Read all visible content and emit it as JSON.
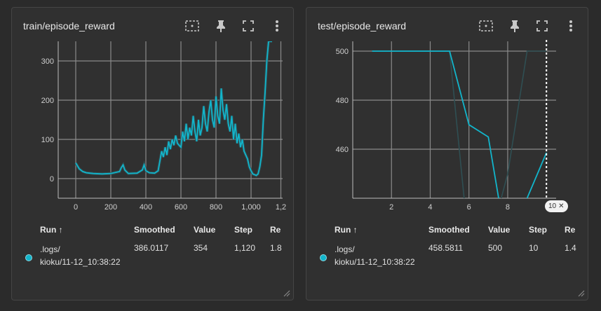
{
  "cards": [
    {
      "title": "train/episode_reward",
      "columns": {
        "run": "Run",
        "run_sort_icon": "arrow-up-icon",
        "smoothed": "Smoothed",
        "value": "Value",
        "step": "Step",
        "rel": "Re"
      },
      "row": {
        "run_line1": ".logs/",
        "run_line2": "kioku/11-12_10:38:22",
        "smoothed": "386.0117",
        "value": "354",
        "step": "1,120",
        "rel": "1.8",
        "color": "#12b5cb"
      }
    },
    {
      "title": "test/episode_reward",
      "columns": {
        "run": "Run",
        "run_sort_icon": "arrow-up-icon",
        "smoothed": "Smoothed",
        "value": "Value",
        "step": "Step",
        "rel": "Re"
      },
      "row": {
        "run_line1": ".logs/",
        "run_line2": "kioku/11-12_10:38:22",
        "smoothed": "458.5811",
        "value": "500",
        "step": "10",
        "rel": "1.4",
        "color": "#12b5cb"
      },
      "hover_step": "10"
    }
  ],
  "toolbar_icons": [
    "fit-domain-icon",
    "pin-icon",
    "fullscreen-icon",
    "more-vert-icon"
  ],
  "chart_data": [
    {
      "type": "line",
      "title": "train/episode_reward",
      "xlim": [
        -100,
        1180
      ],
      "ylim": [
        -50,
        350
      ],
      "x_ticks": [
        "0",
        "200",
        "400",
        "600",
        "800",
        "1,000",
        "1,2"
      ],
      "x_tick_values": [
        0,
        200,
        400,
        600,
        800,
        1000,
        1170
      ],
      "y_ticks": [
        "0",
        "100",
        "200",
        "300"
      ],
      "y_tick_values": [
        0,
        100,
        200,
        300
      ],
      "series": [
        {
          "color": "#12b5cb",
          "x": [
            0,
            20,
            40,
            60,
            80,
            100,
            150,
            200,
            250,
            260,
            270,
            280,
            300,
            350,
            380,
            390,
            400,
            420,
            450,
            470,
            480,
            490,
            500,
            510,
            520,
            530,
            540,
            550,
            560,
            570,
            580,
            600,
            610,
            620,
            630,
            640,
            650,
            660,
            670,
            680,
            690,
            700,
            710,
            720,
            730,
            740,
            750,
            760,
            770,
            780,
            790,
            800,
            810,
            820,
            830,
            840,
            850,
            860,
            870,
            880,
            890,
            900,
            910,
            920,
            930,
            940,
            950,
            960,
            970,
            980,
            990,
            1000,
            1010,
            1020,
            1030,
            1040,
            1050,
            1060,
            1070,
            1080,
            1090,
            1100,
            1110,
            1120
          ],
          "y": [
            40,
            25,
            18,
            15,
            14,
            13,
            12,
            13,
            18,
            28,
            35,
            22,
            13,
            14,
            22,
            35,
            20,
            15,
            14,
            20,
            45,
            70,
            55,
            80,
            60,
            95,
            75,
            100,
            85,
            110,
            90,
            80,
            120,
            95,
            140,
            100,
            130,
            110,
            160,
            120,
            95,
            150,
            110,
            130,
            185,
            140,
            120,
            170,
            200,
            150,
            130,
            210,
            160,
            140,
            230,
            175,
            150,
            190,
            140,
            120,
            160,
            100,
            140,
            90,
            115,
            80,
            100,
            70,
            60,
            50,
            30,
            20,
            12,
            10,
            8,
            12,
            30,
            60,
            150,
            220,
            300,
            350,
            350,
            350
          ]
        }
      ]
    },
    {
      "type": "line",
      "title": "test/episode_reward",
      "xlim": [
        0,
        10.5
      ],
      "ylim": [
        440,
        504
      ],
      "x_ticks": [
        "2",
        "4",
        "6",
        "8"
      ],
      "x_tick_values": [
        2,
        4,
        6,
        8
      ],
      "y_ticks": [
        "460",
        "480",
        "500"
      ],
      "y_tick_values": [
        460,
        480,
        500
      ],
      "series": [
        {
          "name": "smoothed",
          "color": "#12b5cb",
          "x": [
            1,
            2,
            3,
            4,
            5,
            6,
            7,
            8,
            9,
            10
          ],
          "y": [
            500,
            500,
            500,
            500,
            500,
            470,
            465,
            418,
            440,
            458.58
          ]
        },
        {
          "name": "raw",
          "color": "#2f4f53",
          "x": [
            1,
            2,
            3,
            4,
            5,
            6,
            7,
            8,
            9,
            10
          ],
          "y": [
            500,
            500,
            500,
            500,
            500,
            420,
            420,
            450,
            500,
            500
          ]
        }
      ]
    }
  ]
}
